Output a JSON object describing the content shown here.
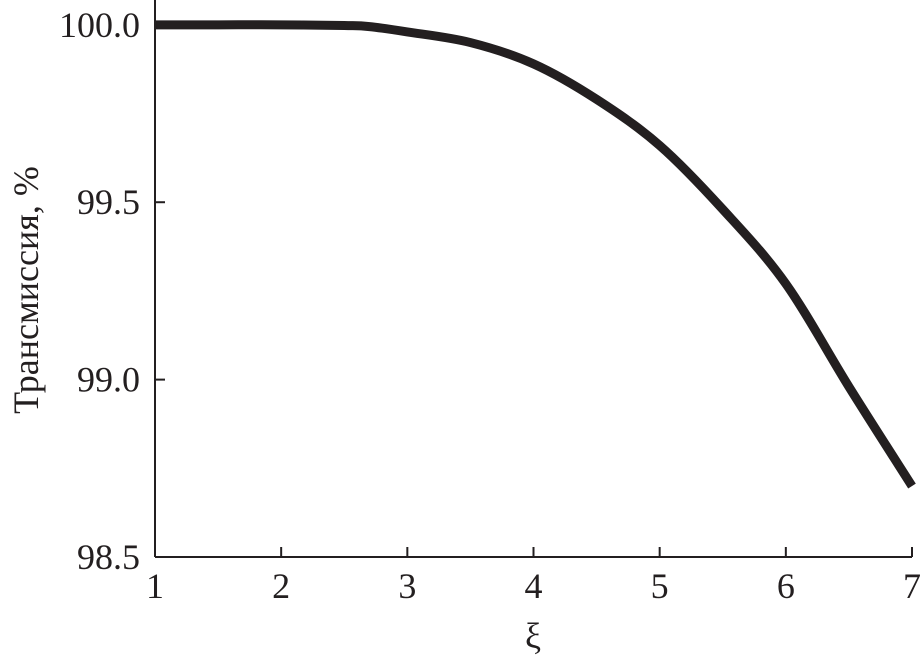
{
  "chart_data": {
    "type": "line",
    "title": "",
    "xlabel": "ξ",
    "ylabel": "Трансмиссия, %",
    "xlim": [
      1,
      7
    ],
    "ylim": [
      98.5,
      100.07
    ],
    "grid": false,
    "x_ticks": [
      "1",
      "2",
      "3",
      "4",
      "5",
      "6",
      "7"
    ],
    "y_ticks": [
      "98.5",
      "99.0",
      "99.5",
      "100.0"
    ],
    "series": [
      {
        "color": "#231f20",
        "x": [
          1,
          1.5,
          2,
          2.5,
          2.7,
          3,
          3.5,
          4,
          4.5,
          5,
          5.5,
          6,
          6.5,
          7
        ],
        "y": [
          100.0,
          100.0,
          100.0,
          99.998,
          99.995,
          99.98,
          99.95,
          99.89,
          99.79,
          99.66,
          99.48,
          99.27,
          98.98,
          98.7
        ]
      }
    ]
  }
}
